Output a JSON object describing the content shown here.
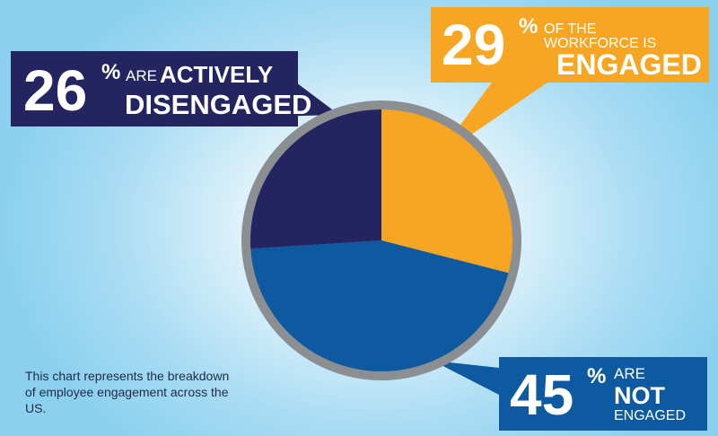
{
  "chart_data": {
    "type": "pie",
    "slices": [
      {
        "label": "ENGAGED",
        "value": 29,
        "color": "#f6a623"
      },
      {
        "label": "NOT ENGAGED",
        "value": 45,
        "color": "#0d5aa0"
      },
      {
        "label": "ACTIVELY DISENGAGED",
        "value": 26,
        "color": "#242461"
      }
    ],
    "ring_color": "#8c8f92"
  },
  "callouts": {
    "disengaged": {
      "number": "26",
      "pct": "%",
      "small": "ARE",
      "bold1": "ACTIVELY",
      "bold2": "DISENGAGED"
    },
    "engaged": {
      "number": "29",
      "pct": "%",
      "small1": "OF THE",
      "small2": "WORKFORCE IS",
      "bold": "ENGAGED"
    },
    "not_engaged": {
      "number": "45",
      "pct": "%",
      "small1": "ARE",
      "bold": "NOT",
      "small2": "ENGAGED"
    }
  },
  "caption": "This chart represents the breakdown of employee engagement across the US."
}
